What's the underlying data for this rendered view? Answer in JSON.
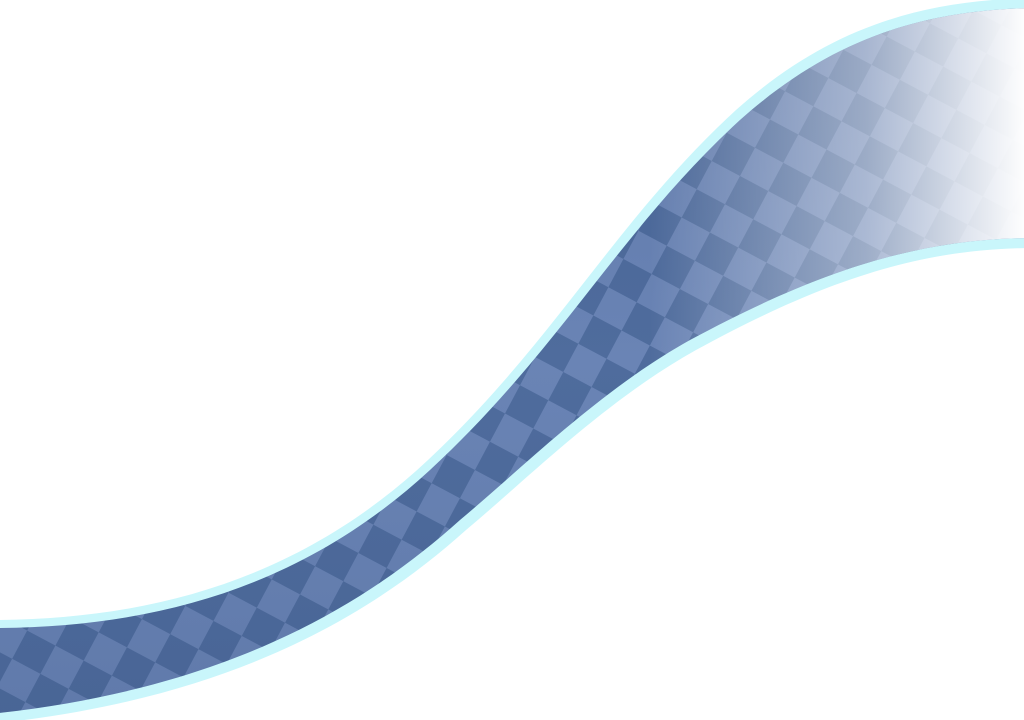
{
  "background": {
    "color": "#ffffff"
  },
  "wave_ribbon": {
    "icon": "checkered-ribbon",
    "fill_color_dark": "#4d6a9b",
    "fill_color_light": "#7b91bd",
    "edge_glow_color": "#c9f6fb",
    "fade_direction": "right"
  }
}
